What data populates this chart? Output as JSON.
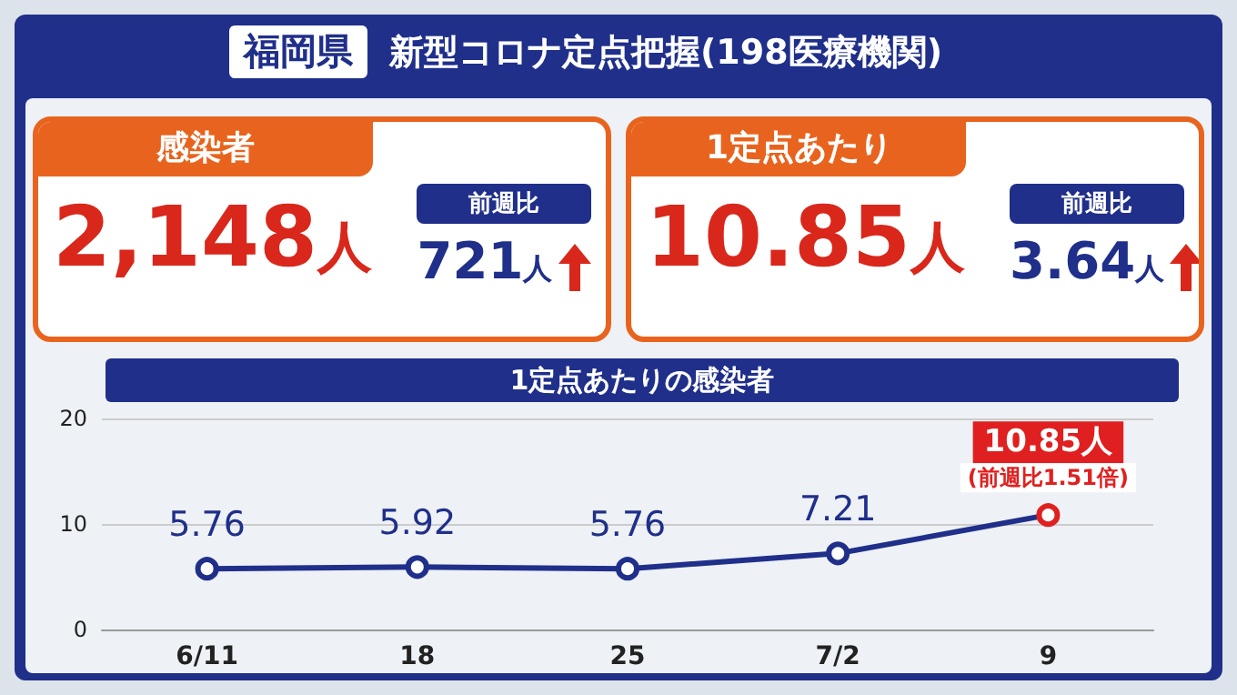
{
  "chart_data": {
    "type": "line",
    "title": "福岡県",
    "subtitle": "新型コロナ定点把握(198医療機関)",
    "categories": [
      "6/11",
      "18",
      "25",
      "7/2",
      "9"
    ],
    "series": [
      {
        "color": "#1f2f8a",
        "colors": [
          "#1f2f8a",
          "#1f2f8a",
          "#1f2f8a",
          "#1f2f8a",
          "#e02020"
        ],
        "values": [
          5.76,
          5.92,
          5.76,
          7.21,
          10.85
        ],
        "value_labels": [
          "5.76",
          "5.92",
          "5.76",
          "7.21",
          "10.85人"
        ]
      }
    ],
    "ylim": [
      0,
      20
    ],
    "yticks": [
      0,
      10,
      20
    ],
    "grid": "y",
    "marker": "circle",
    "line_style": "solid",
    "annotations": [
      "感染者",
      "2,148人",
      "前週比",
      "721人",
      "1定点あたり",
      "10.85人",
      "前週比",
      "3.64人",
      "1定点あたりの感染者",
      {
        "text": "(前週比1.51倍)",
        "x": "9",
        "y": 10.85
      }
    ]
  }
}
